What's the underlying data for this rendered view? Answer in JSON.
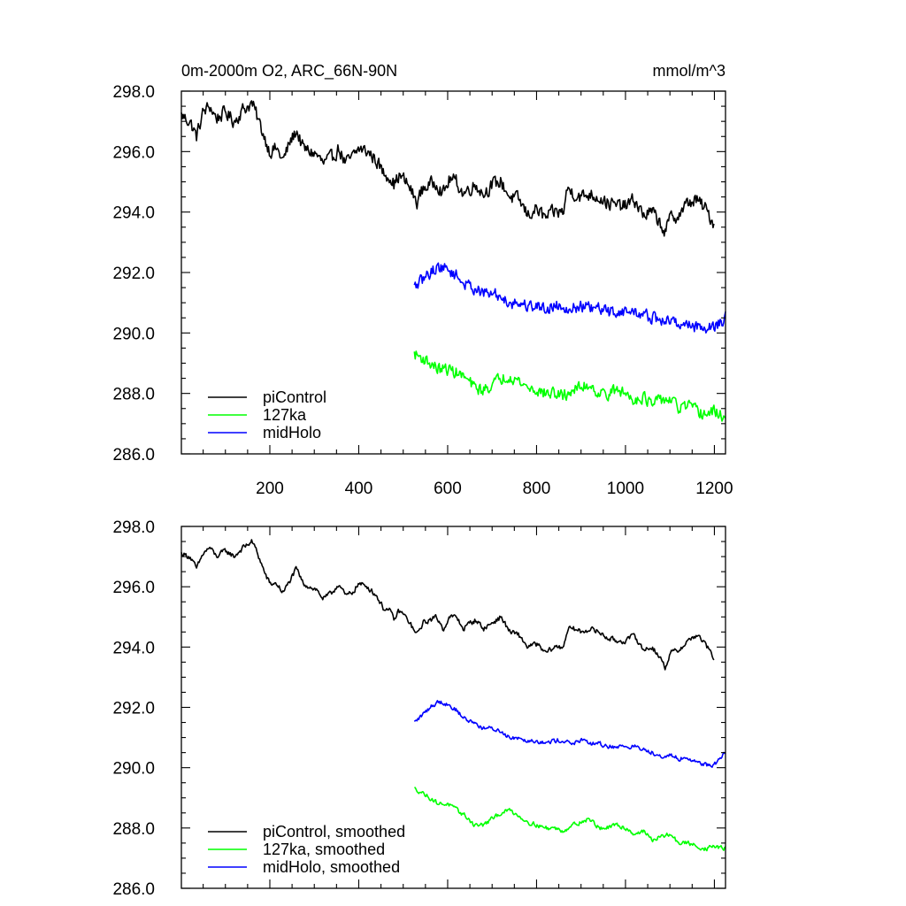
{
  "chart_data": [
    {
      "type": "line",
      "title_left": "0m-2000m O2, ARC_66N-90N",
      "title_right": "mmol/m^3",
      "xlabel": "",
      "ylabel": "",
      "xlim": [
        1,
        1225
      ],
      "ylim": [
        286,
        298
      ],
      "xticks": [
        200,
        400,
        600,
        800,
        1000,
        1200
      ],
      "xtick_labels": [
        "200",
        "400",
        "600",
        "800",
        "1000",
        "1200"
      ],
      "yticks": [
        286,
        288,
        290,
        292,
        294,
        296,
        298
      ],
      "ytick_labels": [
        "286.0",
        "288.0",
        "290.0",
        "292.0",
        "294.0",
        "296.0",
        "298.0"
      ],
      "legend_position": "bottom-left",
      "legend": [
        "piControl",
        "127ka",
        "midHolo"
      ],
      "series": [
        {
          "name": "piControl",
          "color": "#000000",
          "noise": 0.32,
          "x": [
            1,
            20,
            35,
            50,
            65,
            80,
            100,
            120,
            140,
            160,
            170,
            180,
            190,
            200,
            215,
            230,
            245,
            260,
            275,
            290,
            305,
            320,
            340,
            355,
            370,
            385,
            400,
            420,
            440,
            455,
            470,
            480,
            490,
            500,
            515,
            530,
            545,
            560,
            575,
            590,
            605,
            620,
            635,
            650,
            665,
            680,
            700,
            720,
            740,
            760,
            780,
            800,
            820,
            840,
            860,
            870,
            885,
            900,
            920,
            940,
            960,
            980,
            1000,
            1020,
            1040,
            1060,
            1080,
            1090,
            1100,
            1120,
            1140,
            1160,
            1180,
            1200
          ],
          "y": [
            297.2,
            297.0,
            296.5,
            297.3,
            297.5,
            297.1,
            297.3,
            297.0,
            297.4,
            297.6,
            297.2,
            296.8,
            296.4,
            296.0,
            296.1,
            295.7,
            296.3,
            296.7,
            296.1,
            296.0,
            295.9,
            295.6,
            295.8,
            296.1,
            295.6,
            295.8,
            296.1,
            296.0,
            295.7,
            295.3,
            295.2,
            294.9,
            295.2,
            295.1,
            294.8,
            294.3,
            294.8,
            294.9,
            295.0,
            294.6,
            295.1,
            295.0,
            294.6,
            294.8,
            294.9,
            294.6,
            294.9,
            295.0,
            294.5,
            294.4,
            293.9,
            294.1,
            293.8,
            294.0,
            294.0,
            294.8,
            294.6,
            294.5,
            294.6,
            294.5,
            294.3,
            294.2,
            294.2,
            294.4,
            293.9,
            294.0,
            293.6,
            293.3,
            293.8,
            293.9,
            294.3,
            294.4,
            294.1,
            293.6
          ]
        },
        {
          "name": "127ka",
          "color": "#00ff00",
          "noise": 0.28,
          "x": [
            525,
            540,
            560,
            580,
            600,
            620,
            640,
            660,
            680,
            700,
            720,
            740,
            760,
            780,
            800,
            820,
            840,
            860,
            880,
            900,
            920,
            940,
            960,
            980,
            1000,
            1020,
            1040,
            1060,
            1080,
            1100,
            1120,
            1140,
            1160,
            1180,
            1200,
            1225
          ],
          "y": [
            289.3,
            289.2,
            289.0,
            288.8,
            288.8,
            288.7,
            288.5,
            288.2,
            288.1,
            288.3,
            288.5,
            288.6,
            288.4,
            288.2,
            288.1,
            288.0,
            288.0,
            287.9,
            288.1,
            288.2,
            288.3,
            288.0,
            288.0,
            288.1,
            288.0,
            287.8,
            287.9,
            287.6,
            287.8,
            287.8,
            287.5,
            287.6,
            287.4,
            287.3,
            287.4,
            287.2
          ]
        },
        {
          "name": "midHolo",
          "color": "#0000ff",
          "noise": 0.28,
          "x": [
            525,
            540,
            560,
            580,
            600,
            620,
            640,
            660,
            680,
            700,
            720,
            740,
            760,
            780,
            800,
            820,
            840,
            860,
            880,
            900,
            920,
            940,
            960,
            980,
            1000,
            1020,
            1040,
            1060,
            1080,
            1100,
            1120,
            1140,
            1160,
            1180,
            1200,
            1225
          ],
          "y": [
            291.5,
            291.7,
            292.0,
            292.2,
            292.1,
            291.9,
            291.6,
            291.5,
            291.3,
            291.3,
            291.2,
            291.0,
            291.0,
            290.9,
            290.9,
            290.8,
            290.9,
            290.9,
            290.8,
            290.9,
            290.8,
            290.8,
            290.7,
            290.7,
            290.7,
            290.7,
            290.6,
            290.5,
            290.4,
            290.4,
            290.3,
            290.3,
            290.2,
            290.2,
            290.2,
            290.5
          ]
        }
      ]
    },
    {
      "type": "line",
      "title_left": "",
      "title_right": "",
      "xlabel": "",
      "ylabel": "",
      "xlim": [
        1,
        1225
      ],
      "ylim": [
        286,
        298
      ],
      "xticks": [
        200,
        400,
        600,
        800,
        1000,
        1200
      ],
      "xtick_labels": [],
      "yticks": [
        286,
        288,
        290,
        292,
        294,
        296,
        298
      ],
      "ytick_labels": [
        "286.0",
        "288.0",
        "290.0",
        "292.0",
        "294.0",
        "296.0",
        "298.0"
      ],
      "legend_position": "bottom-left",
      "legend": [
        "piControl, smoothed",
        "127ka, smoothed",
        "midHolo, smoothed"
      ],
      "series": [
        {
          "name": "piControl, smoothed",
          "color": "#000000",
          "noise": 0.12,
          "x": [
            1,
            20,
            35,
            50,
            65,
            80,
            100,
            120,
            140,
            160,
            170,
            180,
            190,
            200,
            215,
            230,
            245,
            260,
            275,
            290,
            305,
            320,
            340,
            355,
            370,
            385,
            400,
            420,
            440,
            455,
            470,
            480,
            490,
            500,
            515,
            530,
            545,
            560,
            575,
            590,
            605,
            620,
            635,
            650,
            665,
            680,
            700,
            720,
            740,
            760,
            780,
            800,
            820,
            840,
            860,
            870,
            885,
            900,
            920,
            940,
            960,
            980,
            1000,
            1020,
            1040,
            1060,
            1080,
            1090,
            1100,
            1120,
            1140,
            1160,
            1180,
            1200
          ],
          "y": [
            297.1,
            297.0,
            296.6,
            297.1,
            297.3,
            297.0,
            297.2,
            297.0,
            297.3,
            297.5,
            297.2,
            296.8,
            296.4,
            296.1,
            296.1,
            295.8,
            296.2,
            296.6,
            296.1,
            296.0,
            295.9,
            295.6,
            295.8,
            296.1,
            295.7,
            295.8,
            296.1,
            296.0,
            295.7,
            295.3,
            295.2,
            294.9,
            295.2,
            295.1,
            294.8,
            294.4,
            294.8,
            294.9,
            295.0,
            294.6,
            295.0,
            295.0,
            294.6,
            294.8,
            294.9,
            294.6,
            294.8,
            295.0,
            294.5,
            294.4,
            294.0,
            294.1,
            293.8,
            294.0,
            294.0,
            294.6,
            294.6,
            294.5,
            294.6,
            294.5,
            294.3,
            294.2,
            294.2,
            294.4,
            293.9,
            294.0,
            293.6,
            293.3,
            293.8,
            293.9,
            294.2,
            294.4,
            294.1,
            293.6
          ]
        },
        {
          "name": "127ka, smoothed",
          "color": "#00ff00",
          "noise": 0.1,
          "x": [
            525,
            540,
            560,
            580,
            600,
            620,
            640,
            660,
            680,
            700,
            720,
            740,
            760,
            780,
            800,
            820,
            840,
            860,
            880,
            900,
            920,
            940,
            960,
            980,
            1000,
            1020,
            1040,
            1060,
            1080,
            1100,
            1120,
            1140,
            1160,
            1180,
            1200,
            1225
          ],
          "y": [
            289.3,
            289.2,
            289.0,
            288.8,
            288.8,
            288.6,
            288.4,
            288.1,
            288.1,
            288.3,
            288.5,
            288.6,
            288.4,
            288.2,
            288.1,
            288.0,
            288.0,
            287.9,
            288.1,
            288.2,
            288.3,
            288.0,
            288.0,
            288.1,
            288.0,
            287.8,
            287.9,
            287.6,
            287.7,
            287.8,
            287.5,
            287.5,
            287.4,
            287.3,
            287.4,
            287.3
          ]
        },
        {
          "name": "midHolo, smoothed",
          "color": "#0000ff",
          "noise": 0.1,
          "x": [
            525,
            540,
            560,
            580,
            600,
            620,
            640,
            660,
            680,
            700,
            720,
            740,
            760,
            780,
            800,
            820,
            840,
            860,
            880,
            900,
            920,
            940,
            960,
            980,
            1000,
            1020,
            1040,
            1060,
            1080,
            1100,
            1120,
            1140,
            1160,
            1180,
            1200,
            1225
          ],
          "y": [
            291.5,
            291.7,
            292.0,
            292.2,
            292.1,
            291.9,
            291.6,
            291.5,
            291.3,
            291.3,
            291.2,
            291.0,
            291.0,
            290.9,
            290.9,
            290.8,
            290.9,
            290.9,
            290.8,
            290.9,
            290.8,
            290.8,
            290.7,
            290.7,
            290.7,
            290.7,
            290.6,
            290.5,
            290.4,
            290.4,
            290.3,
            290.3,
            290.2,
            290.1,
            290.1,
            290.5
          ]
        }
      ]
    }
  ]
}
